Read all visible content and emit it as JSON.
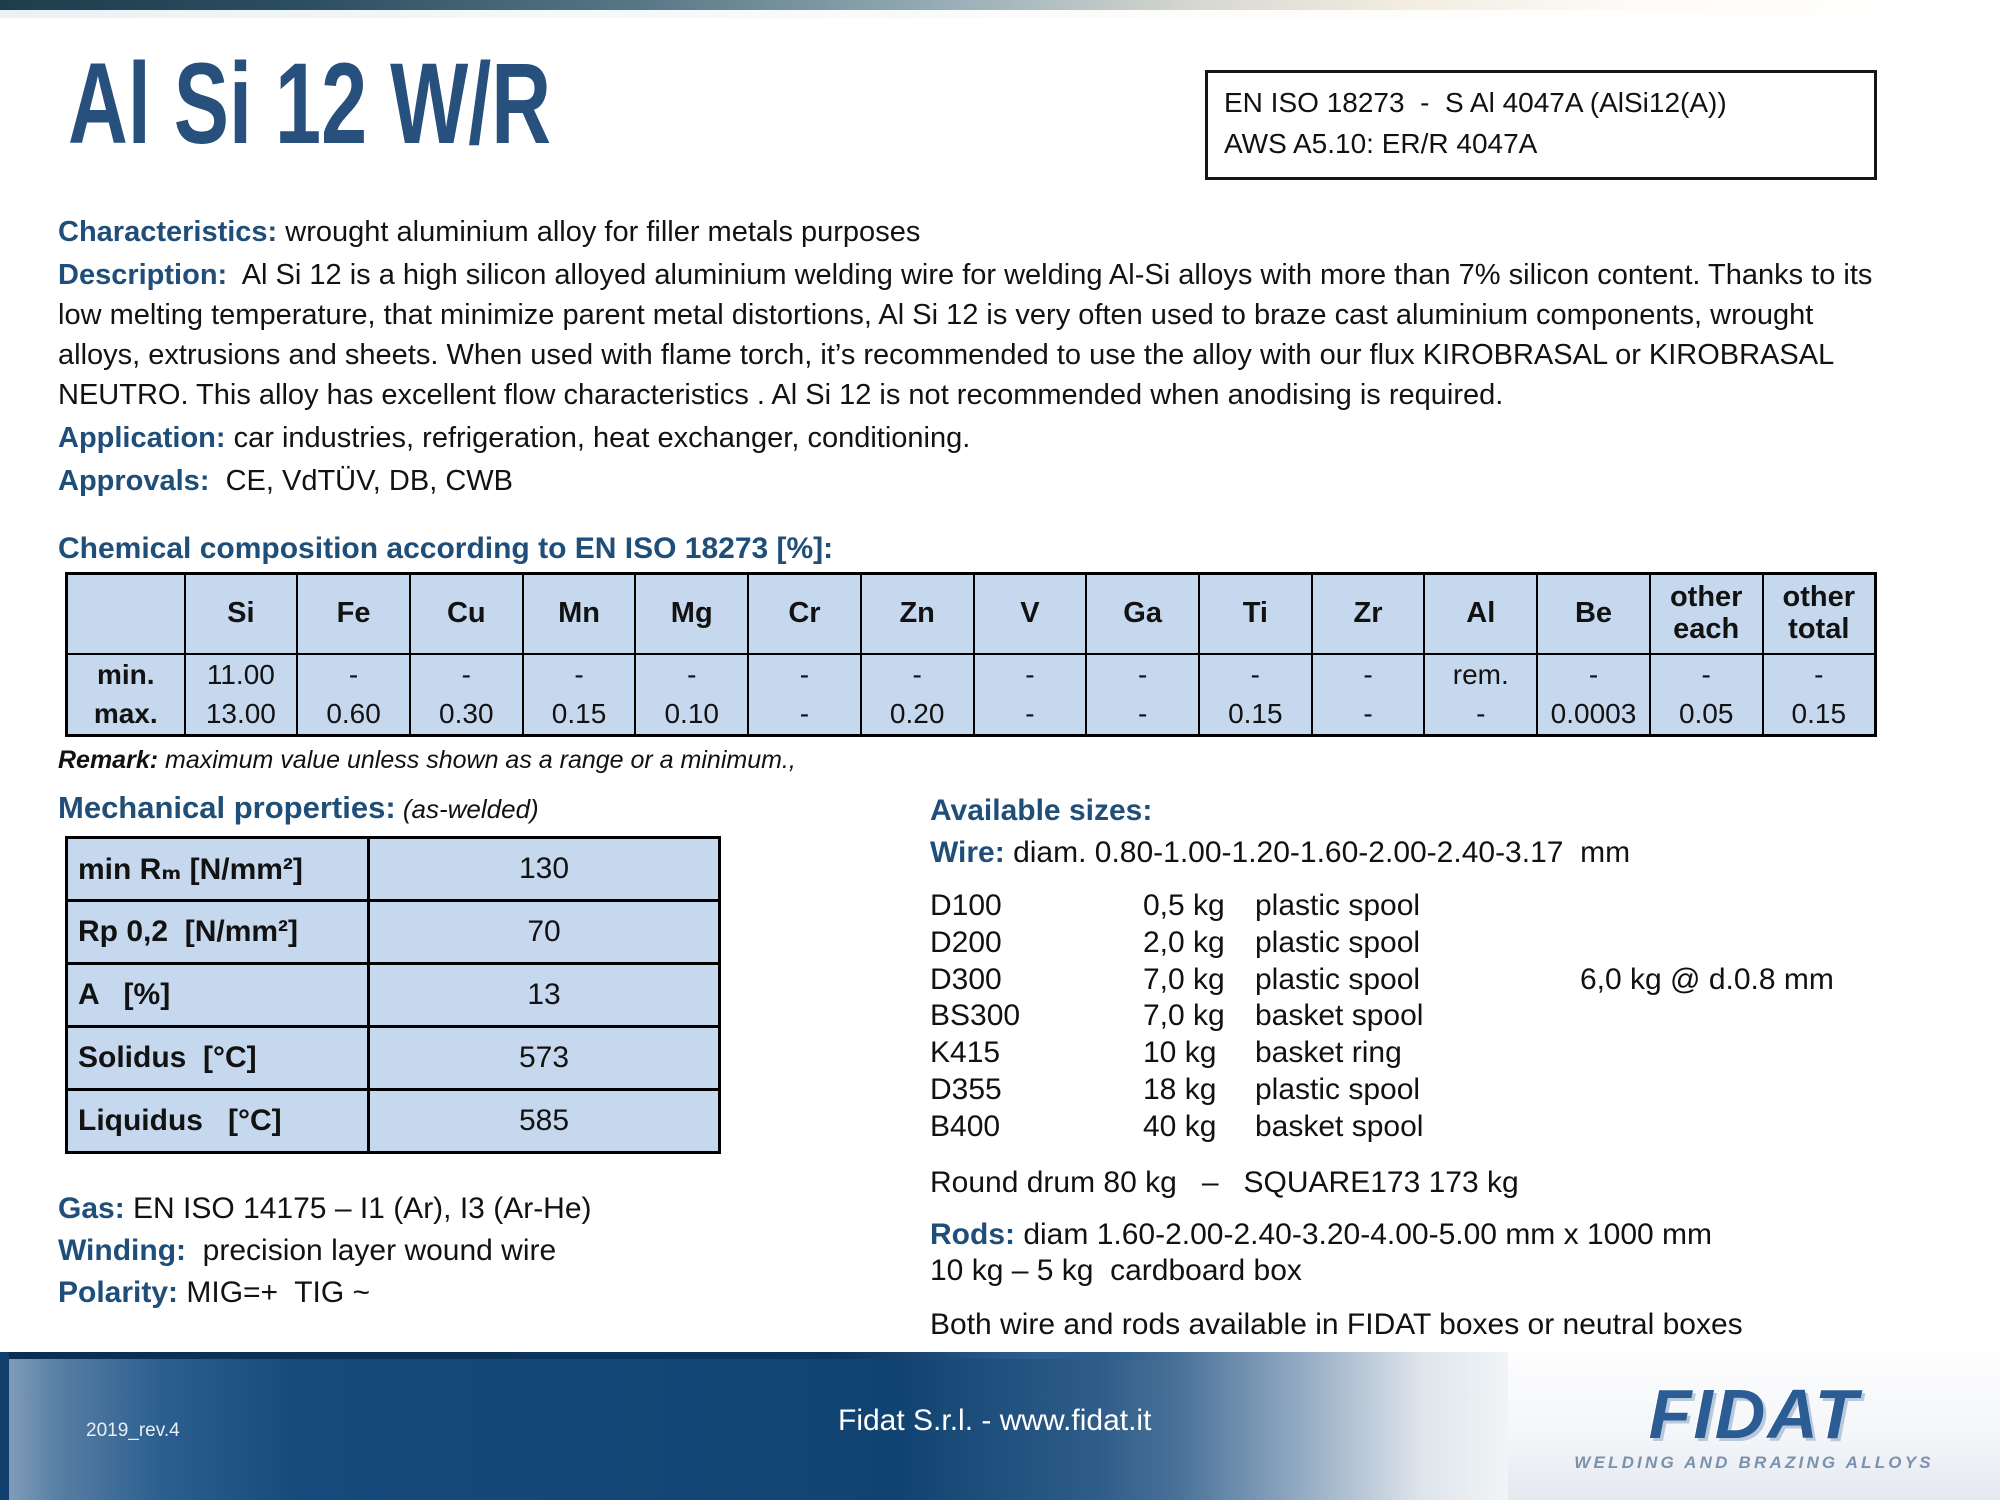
{
  "colors": {
    "accent": "#1f4e79",
    "table_bg": "#c6d8ee",
    "footer_navy": "#11406f"
  },
  "header": {
    "title": "Al Si 12 W/R",
    "standards_line1": "EN ISO 18273  -  S Al 4047A (AlSi12(A))",
    "standards_line2": "AWS A5.10: ER/R 4047A"
  },
  "intro": {
    "characteristics_label": "Characteristics:",
    "characteristics_text": " wrought aluminium alloy for filler metals purposes",
    "description_label": "Description:",
    "description_text": "  Al Si 12 is a high silicon alloyed aluminium welding wire for welding Al-Si alloys with more than 7% silicon content. Thanks to its low melting temperature, that minimize parent metal distortions, Al Si 12 is very often used to braze cast aluminium components, wrought alloys, extrusions and sheets. When used with flame torch, it’s recommended to use the alloy with our flux KIROBRASAL or KIROBRASAL NEUTRO. This alloy has excellent flow characteristics . Al Si 12 is not recommended when anodising is required.",
    "application_label": "Application:",
    "application_text": " car industries, refrigeration, heat exchanger, conditioning.",
    "approvals_label": "Approvals:",
    "approvals_text": "  CE, VdTÜV, DB, CWB"
  },
  "chemical": {
    "heading": "Chemical composition according to EN ISO 18273 [%]:",
    "columns": [
      "",
      "Si",
      "Fe",
      "Cu",
      "Mn",
      "Mg",
      "Cr",
      "Zn",
      "V",
      "Ga",
      "Ti",
      "Zr",
      "Al",
      "Be",
      "other each",
      "other total"
    ],
    "rows": [
      {
        "label": "min.",
        "values": [
          "11.00",
          "-",
          "-",
          "-",
          "-",
          "-",
          "-",
          "-",
          "-",
          "-",
          "-",
          "rem.",
          "-",
          "-",
          "-"
        ]
      },
      {
        "label": "max.",
        "values": [
          "13.00",
          "0.60",
          "0.30",
          "0.15",
          "0.10",
          "-",
          "0.20",
          "-",
          "-",
          "0.15",
          "-",
          "-",
          "0.0003",
          "0.05",
          "0.15"
        ]
      }
    ],
    "remark_label": "Remark:",
    "remark_text": " maximum value unless shown as a range or a minimum.,"
  },
  "mechanical": {
    "heading": "Mechanical properties:",
    "subheading": " (as-welded)",
    "rows": [
      {
        "label": "min Rₘ [N/mm²]",
        "value": "130"
      },
      {
        "label": "Rp 0,2  [N/mm²]",
        "value": "70"
      },
      {
        "label": "A   [%]",
        "value": "13"
      },
      {
        "label": "Solidus  [°C]",
        "value": "573"
      },
      {
        "label": "Liquidus   [°C]",
        "value": "585"
      }
    ]
  },
  "left_info": {
    "gas_label": "Gas:",
    "gas_text": " EN ISO 14175 – I1 (Ar), I3 (Ar-He)",
    "winding_label": "Winding:",
    "winding_text": "  precision layer wound wire",
    "polarity_label": "Polarity:",
    "polarity_text": " MIG=+  TIG ~"
  },
  "sizes": {
    "heading": "Available sizes:",
    "wire_label": "Wire:",
    "wire_text": " diam. 0.80-1.00-1.20-1.60-2.00-2.40-3.17  mm",
    "packages": [
      {
        "code": "D100",
        "weight": "0,5 kg",
        "type": "plastic spool",
        "note": ""
      },
      {
        "code": "D200",
        "weight": "2,0 kg",
        "type": "plastic spool",
        "note": ""
      },
      {
        "code": "D300",
        "weight": "7,0 kg",
        "type": "plastic spool",
        "note": "6,0 kg @ d.0.8 mm"
      },
      {
        "code": "BS300",
        "weight": "7,0 kg",
        "type": "basket spool",
        "note": ""
      },
      {
        "code": "K415",
        "weight": "10 kg",
        "type": "basket ring",
        "note": ""
      },
      {
        "code": "D355",
        "weight": "18 kg",
        "type": "plastic spool",
        "note": ""
      },
      {
        "code": "B400",
        "weight": "40 kg",
        "type": "basket spool",
        "note": ""
      }
    ],
    "drum_line": "Round drum 80 kg   –   SQUARE173 173 kg",
    "rods_label": "Rods:",
    "rods_text": " diam 1.60-2.00-2.40-3.20-4.00-5.00 mm x 1000 mm",
    "rods_text2": "10 kg – 5 kg  cardboard box",
    "both_line": "Both wire and rods available in FIDAT boxes or neutral boxes"
  },
  "footer": {
    "revision": "2019_rev.4",
    "company": "Fidat S.r.l. - www.fidat.it",
    "logo_word": "FIDAT",
    "logo_sub": "WELDING AND BRAZING ALLOYS"
  }
}
